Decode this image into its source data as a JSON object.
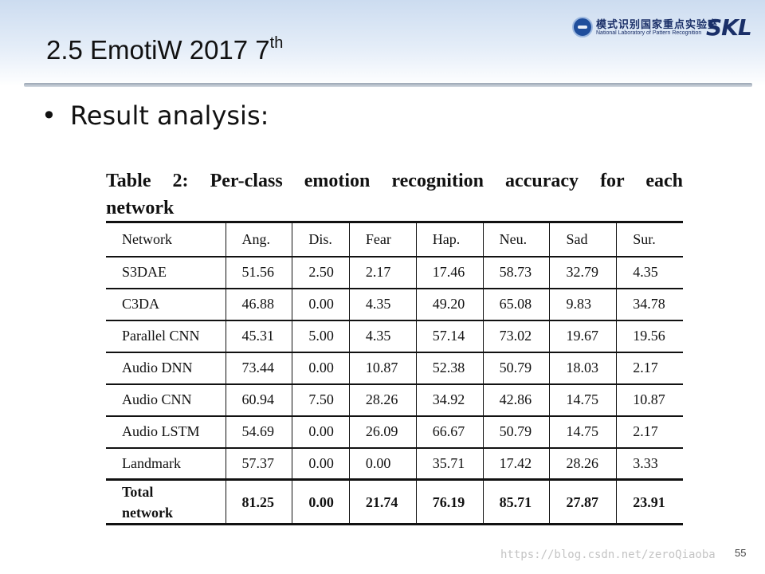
{
  "slide": {
    "title": "2.5 EmotiW 2017 7",
    "title_sup": "th",
    "page_number": "55",
    "watermark": "https://blog.csdn.net/zeroQiaoba"
  },
  "logo": {
    "name_cn": "模式识别国家重点实验室",
    "name_en": "National Laboratory of Pattern Recognition",
    "abbr": "SKL",
    "emblem_icon": "nlpr-emblem-icon"
  },
  "bullet": {
    "text": "Result analysis:"
  },
  "table": {
    "caption_line1": "Table 2: Per-class emotion recognition accuracy for each",
    "caption_line2": "network",
    "headers": [
      "Network",
      "Ang.",
      "Dis.",
      "Fear",
      "Hap.",
      "Neu.",
      "Sad",
      "Sur."
    ],
    "rows": [
      [
        "S3DAE",
        "51.56",
        "2.50",
        "2.17",
        "17.46",
        "58.73",
        "32.79",
        "4.35"
      ],
      [
        "C3DA",
        "46.88",
        "0.00",
        "4.35",
        "49.20",
        "65.08",
        "9.83",
        "34.78"
      ],
      [
        "Parallel CNN",
        "45.31",
        "5.00",
        "4.35",
        "57.14",
        "73.02",
        "19.67",
        "19.56"
      ],
      [
        "Audio DNN",
        "73.44",
        "0.00",
        "10.87",
        "52.38",
        "50.79",
        "18.03",
        "2.17"
      ],
      [
        "Audio CNN",
        "60.94",
        "7.50",
        "28.26",
        "34.92",
        "42.86",
        "14.75",
        "10.87"
      ],
      [
        "Audio LSTM",
        "54.69",
        "0.00",
        "26.09",
        "66.67",
        "50.79",
        "14.75",
        "2.17"
      ],
      [
        "Landmark",
        "57.37",
        "0.00",
        "0.00",
        "35.71",
        "17.42",
        "28.26",
        "3.33"
      ]
    ],
    "total_row": {
      "label_line1": "Total",
      "label_line2": "network",
      "values": [
        "81.25",
        "0.00",
        "21.74",
        "76.19",
        "85.71",
        "27.87",
        "23.91"
      ]
    }
  }
}
